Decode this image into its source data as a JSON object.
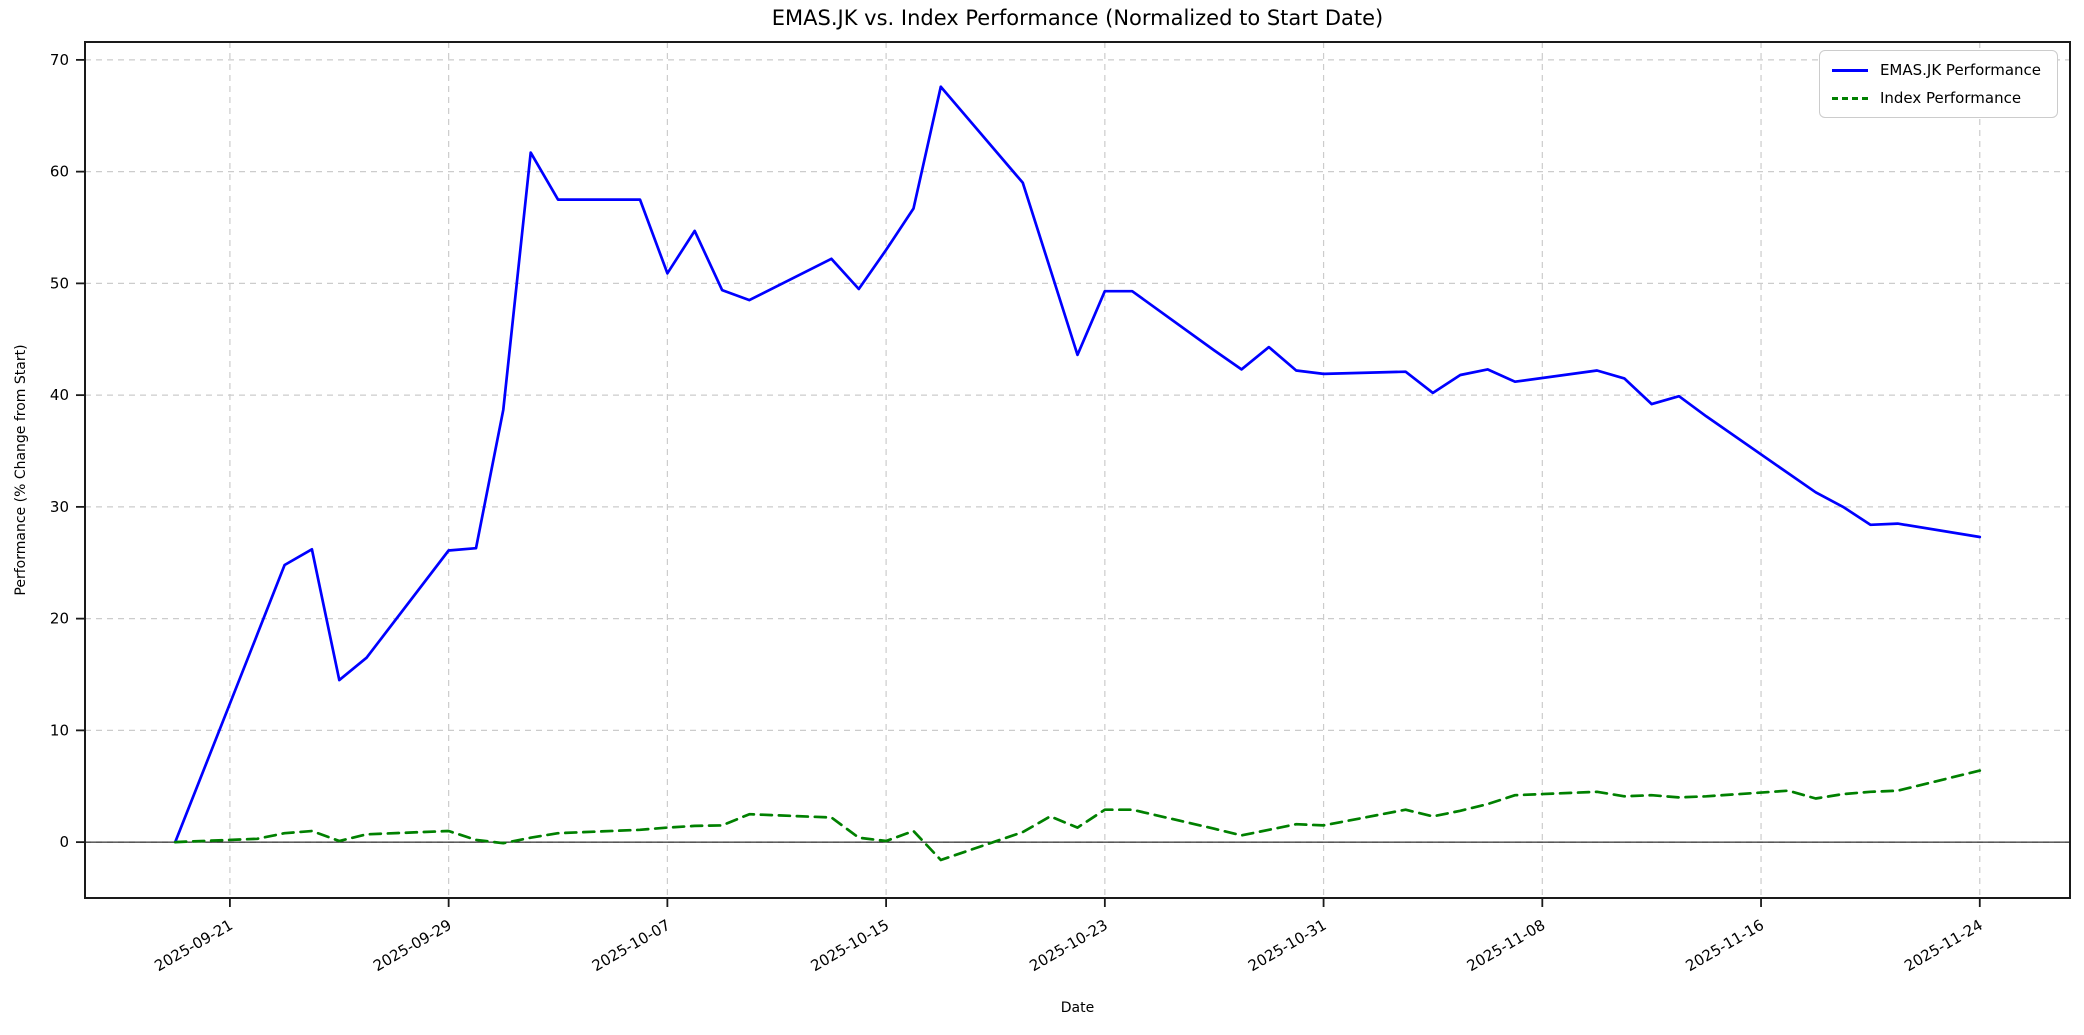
{
  "chart_data": {
    "type": "line",
    "title": "EMAS.JK vs. Index Performance (Normalized to Start Date)",
    "xlabel": "Date",
    "ylabel": "Performance (% Change from Start)",
    "x": [
      "2025-09-19",
      "2025-09-22",
      "2025-09-23",
      "2025-09-24",
      "2025-09-25",
      "2025-09-26",
      "2025-09-29",
      "2025-09-30",
      "2025-10-01",
      "2025-10-02",
      "2025-10-03",
      "2025-10-06",
      "2025-10-07",
      "2025-10-08",
      "2025-10-09",
      "2025-10-10",
      "2025-10-13",
      "2025-10-14",
      "2025-10-15",
      "2025-10-16",
      "2025-10-17",
      "2025-10-20",
      "2025-10-21",
      "2025-10-22",
      "2025-10-23",
      "2025-10-24",
      "2025-10-27",
      "2025-10-28",
      "2025-10-29",
      "2025-10-30",
      "2025-10-31",
      "2025-11-03",
      "2025-11-04",
      "2025-11-05",
      "2025-11-06",
      "2025-11-07",
      "2025-11-10",
      "2025-11-11",
      "2025-11-12",
      "2025-11-13",
      "2025-11-14",
      "2025-11-17",
      "2025-11-18",
      "2025-11-19",
      "2025-11-20",
      "2025-11-21",
      "2025-11-24"
    ],
    "series": [
      {
        "name": "EMAS.JK Performance",
        "color": "#0000ff",
        "style": "solid",
        "values": [
          0.0,
          18.6,
          24.8,
          26.2,
          14.5,
          16.5,
          26.1,
          26.3,
          38.7,
          61.7,
          57.5,
          57.5,
          50.9,
          54.7,
          49.4,
          48.5,
          52.2,
          49.5,
          53.0,
          56.7,
          67.6,
          59.0,
          51.3,
          43.6,
          49.3,
          49.3,
          44.0,
          42.3,
          44.3,
          42.2,
          41.9,
          42.1,
          40.2,
          41.8,
          42.3,
          41.2,
          42.2,
          41.5,
          39.2,
          39.9,
          38.1,
          33.0,
          31.3,
          30.0,
          28.4,
          28.5,
          27.3
        ]
      },
      {
        "name": "Index Performance",
        "color": "#008000",
        "style": "dashed",
        "values": [
          0.0,
          0.3,
          0.8,
          1.0,
          0.1,
          0.7,
          1.0,
          0.2,
          -0.1,
          0.4,
          0.8,
          1.1,
          1.3,
          1.45,
          1.5,
          2.5,
          2.2,
          0.4,
          0.1,
          1.0,
          -1.6,
          0.9,
          2.3,
          1.3,
          2.9,
          2.9,
          1.2,
          0.6,
          1.1,
          1.6,
          1.5,
          2.9,
          2.3,
          2.8,
          3.4,
          4.2,
          4.5,
          4.1,
          4.2,
          4.0,
          4.1,
          4.6,
          3.9,
          4.3,
          4.5,
          4.6,
          6.4
        ]
      }
    ],
    "x_tick_labels": [
      "2025-09-21",
      "2025-09-29",
      "2025-10-07",
      "2025-10-15",
      "2025-10-23",
      "2025-10-31",
      "2025-11-08",
      "2025-11-16",
      "2025-11-24"
    ],
    "y_tick_labels": [
      "0",
      "10",
      "20",
      "30",
      "40",
      "50",
      "60",
      "70"
    ],
    "y_ticks": [
      0,
      10,
      20,
      30,
      40,
      50,
      60,
      70
    ],
    "ylim": [
      -5.0,
      71.6
    ],
    "grid": "on",
    "grid_color": "#cccccc",
    "zero_line": true,
    "legend_position": "upper right"
  }
}
